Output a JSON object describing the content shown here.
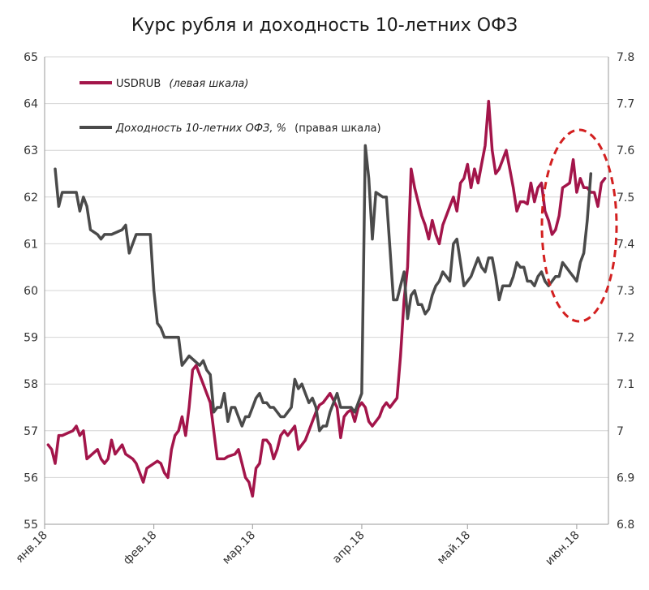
{
  "chart_data": {
    "type": "line",
    "title": "Курс рубля и доходность 10-летних ОФЗ",
    "x_labels": [
      "янв.18",
      "фев.18",
      "мар.18",
      "апр.18",
      "май.18",
      "июн.18"
    ],
    "ylim_left": [
      55,
      65
    ],
    "ylim_right": [
      6.8,
      7.8
    ],
    "y_ticks_left": [
      "55",
      "56",
      "57",
      "58",
      "59",
      "60",
      "61",
      "62",
      "63",
      "64",
      "65"
    ],
    "y_ticks_right": [
      "6.8",
      "6.9",
      "7",
      "7.1",
      "7.2",
      "7.3",
      "7.4",
      "7.5",
      "7.6",
      "7.7",
      "7.8"
    ],
    "grid": true,
    "legend_position": "top-left",
    "series": [
      {
        "name": "USDRUB",
        "name_suffix": "(левая шкала)",
        "axis": "left",
        "color": "#a3154a",
        "points": [
          [
            1,
            56.7
          ],
          [
            2,
            56.6
          ],
          [
            3,
            56.3
          ],
          [
            4,
            56.9
          ],
          [
            5,
            56.9
          ],
          [
            8,
            57.0
          ],
          [
            9,
            57.1
          ],
          [
            10,
            56.9
          ],
          [
            11,
            57.0
          ],
          [
            12,
            56.4
          ],
          [
            15,
            56.6
          ],
          [
            16,
            56.4
          ],
          [
            17,
            56.3
          ],
          [
            18,
            56.4
          ],
          [
            19,
            56.8
          ],
          [
            20,
            56.5
          ],
          [
            22,
            56.7
          ],
          [
            23,
            56.5
          ],
          [
            25,
            56.4
          ],
          [
            26,
            56.3
          ],
          [
            27,
            56.1
          ],
          [
            28,
            55.9
          ],
          [
            29,
            56.2
          ],
          [
            31,
            56.3
          ],
          [
            32,
            56.35
          ],
          [
            33,
            56.3
          ],
          [
            34,
            56.1
          ],
          [
            35,
            56.0
          ],
          [
            36,
            56.6
          ],
          [
            37,
            56.9
          ],
          [
            38,
            57.0
          ],
          [
            39,
            57.3
          ],
          [
            40,
            56.9
          ],
          [
            41,
            57.5
          ],
          [
            42,
            58.3
          ],
          [
            43,
            58.4
          ],
          [
            44,
            58.2
          ],
          [
            45,
            58.0
          ],
          [
            46,
            57.8
          ],
          [
            47,
            57.6
          ],
          [
            48,
            57.0
          ],
          [
            49,
            56.4
          ],
          [
            51,
            56.4
          ],
          [
            52,
            56.45
          ],
          [
            54,
            56.5
          ],
          [
            55,
            56.6
          ],
          [
            56,
            56.3
          ],
          [
            57,
            56.0
          ],
          [
            58,
            55.9
          ],
          [
            59,
            55.6
          ],
          [
            60,
            56.2
          ],
          [
            61,
            56.3
          ],
          [
            62,
            56.8
          ],
          [
            63,
            56.8
          ],
          [
            64,
            56.7
          ],
          [
            65,
            56.4
          ],
          [
            66,
            56.6
          ],
          [
            67,
            56.9
          ],
          [
            68,
            57.0
          ],
          [
            69,
            56.9
          ],
          [
            70,
            57.0
          ],
          [
            71,
            57.1
          ],
          [
            72,
            56.6
          ],
          [
            73,
            56.7
          ],
          [
            74,
            56.8
          ],
          [
            75,
            57.0
          ],
          [
            76,
            57.2
          ],
          [
            77,
            57.4
          ],
          [
            78,
            57.55
          ],
          [
            79,
            57.6
          ],
          [
            80,
            57.7
          ],
          [
            81,
            57.8
          ],
          [
            83,
            57.5
          ],
          [
            84,
            56.85
          ],
          [
            85,
            57.3
          ],
          [
            86,
            57.4
          ],
          [
            87,
            57.45
          ],
          [
            88,
            57.2
          ],
          [
            89,
            57.5
          ],
          [
            90,
            57.6
          ],
          [
            91,
            57.5
          ],
          [
            92,
            57.2
          ],
          [
            93,
            57.1
          ],
          [
            94,
            57.2
          ],
          [
            95,
            57.3
          ],
          [
            96,
            57.5
          ],
          [
            97,
            57.6
          ],
          [
            98,
            57.5
          ],
          [
            99,
            57.6
          ],
          [
            100,
            57.7
          ],
          [
            101,
            58.6
          ],
          [
            102,
            59.8
          ],
          [
            103,
            60.5
          ],
          [
            104,
            62.6
          ],
          [
            105,
            62.2
          ],
          [
            106,
            61.9
          ],
          [
            107,
            61.6
          ],
          [
            108,
            61.4
          ],
          [
            109,
            61.1
          ],
          [
            110,
            61.5
          ],
          [
            111,
            61.2
          ],
          [
            112,
            61.0
          ],
          [
            113,
            61.4
          ],
          [
            114,
            61.6
          ],
          [
            115,
            61.8
          ],
          [
            116,
            62.0
          ],
          [
            117,
            61.7
          ],
          [
            118,
            62.3
          ],
          [
            119,
            62.4
          ],
          [
            120,
            62.7
          ],
          [
            121,
            62.2
          ],
          [
            122,
            62.6
          ],
          [
            123,
            62.3
          ],
          [
            124,
            62.7
          ],
          [
            125,
            63.1
          ],
          [
            126,
            64.05
          ],
          [
            127,
            63.0
          ],
          [
            128,
            62.5
          ],
          [
            129,
            62.6
          ],
          [
            130,
            62.8
          ],
          [
            131,
            63.0
          ],
          [
            132,
            62.6
          ],
          [
            133,
            62.2
          ],
          [
            134,
            61.7
          ],
          [
            135,
            61.9
          ],
          [
            136,
            61.9
          ],
          [
            137,
            61.85
          ],
          [
            138,
            62.3
          ],
          [
            139,
            61.9
          ],
          [
            140,
            62.2
          ],
          [
            141,
            62.3
          ],
          [
            142,
            61.7
          ],
          [
            143,
            61.5
          ],
          [
            144,
            61.2
          ],
          [
            145,
            61.3
          ],
          [
            146,
            61.6
          ],
          [
            147,
            62.2
          ],
          [
            148,
            62.25
          ],
          [
            149,
            62.3
          ],
          [
            150,
            62.8
          ],
          [
            151,
            62.1
          ],
          [
            152,
            62.4
          ],
          [
            153,
            62.2
          ],
          [
            154,
            62.2
          ],
          [
            155,
            62.1
          ],
          [
            156,
            62.1
          ],
          [
            157,
            61.8
          ],
          [
            158,
            62.3
          ],
          [
            159,
            62.4
          ]
        ]
      },
      {
        "name": "Доходность 10-летних ОФЗ, %",
        "name_suffix": "(правая шкала)",
        "axis": "right",
        "color": "#4a4a4a",
        "points": [
          [
            3,
            7.56
          ],
          [
            4,
            7.48
          ],
          [
            5,
            7.51
          ],
          [
            6,
            7.51
          ],
          [
            9,
            7.51
          ],
          [
            10,
            7.47
          ],
          [
            11,
            7.5
          ],
          [
            12,
            7.48
          ],
          [
            13,
            7.43
          ],
          [
            15,
            7.42
          ],
          [
            16,
            7.41
          ],
          [
            17,
            7.42
          ],
          [
            19,
            7.42
          ],
          [
            22,
            7.43
          ],
          [
            23,
            7.44
          ],
          [
            24,
            7.38
          ],
          [
            25,
            7.4
          ],
          [
            26,
            7.42
          ],
          [
            30,
            7.42
          ],
          [
            31,
            7.3
          ],
          [
            32,
            7.23
          ],
          [
            33,
            7.22
          ],
          [
            34,
            7.2
          ],
          [
            38,
            7.2
          ],
          [
            39,
            7.14
          ],
          [
            40,
            7.15
          ],
          [
            41,
            7.16
          ],
          [
            44,
            7.14
          ],
          [
            45,
            7.15
          ],
          [
            46,
            7.13
          ],
          [
            47,
            7.12
          ],
          [
            48,
            7.04
          ],
          [
            49,
            7.05
          ],
          [
            50,
            7.05
          ],
          [
            51,
            7.08
          ],
          [
            52,
            7.02
          ],
          [
            53,
            7.05
          ],
          [
            54,
            7.05
          ],
          [
            55,
            7.03
          ],
          [
            56,
            7.01
          ],
          [
            57,
            7.03
          ],
          [
            58,
            7.03
          ],
          [
            59,
            7.05
          ],
          [
            60,
            7.07
          ],
          [
            61,
            7.08
          ],
          [
            62,
            7.06
          ],
          [
            63,
            7.06
          ],
          [
            64,
            7.05
          ],
          [
            65,
            7.05
          ],
          [
            66,
            7.04
          ],
          [
            67,
            7.03
          ],
          [
            68,
            7.03
          ],
          [
            70,
            7.05
          ],
          [
            71,
            7.11
          ],
          [
            72,
            7.09
          ],
          [
            73,
            7.1
          ],
          [
            74,
            7.08
          ],
          [
            75,
            7.06
          ],
          [
            76,
            7.07
          ],
          [
            77,
            7.05
          ],
          [
            78,
            7.0
          ],
          [
            79,
            7.01
          ],
          [
            80,
            7.01
          ],
          [
            81,
            7.04
          ],
          [
            82,
            7.06
          ],
          [
            83,
            7.08
          ],
          [
            84,
            7.05
          ],
          [
            87,
            7.05
          ],
          [
            88,
            7.04
          ],
          [
            89,
            7.06
          ],
          [
            90,
            7.08
          ],
          [
            91,
            7.61
          ],
          [
            92,
            7.54
          ],
          [
            93,
            7.41
          ],
          [
            94,
            7.51
          ],
          [
            96,
            7.5
          ],
          [
            97,
            7.5
          ],
          [
            98,
            7.39
          ],
          [
            99,
            7.28
          ],
          [
            100,
            7.28
          ],
          [
            101,
            7.31
          ],
          [
            102,
            7.34
          ],
          [
            103,
            7.24
          ],
          [
            104,
            7.29
          ],
          [
            105,
            7.3
          ],
          [
            106,
            7.27
          ],
          [
            107,
            7.27
          ],
          [
            108,
            7.25
          ],
          [
            109,
            7.26
          ],
          [
            110,
            7.29
          ],
          [
            111,
            7.31
          ],
          [
            112,
            7.32
          ],
          [
            113,
            7.34
          ],
          [
            114,
            7.33
          ],
          [
            115,
            7.32
          ],
          [
            116,
            7.4
          ],
          [
            117,
            7.41
          ],
          [
            118,
            7.36
          ],
          [
            119,
            7.31
          ],
          [
            120,
            7.32
          ],
          [
            121,
            7.33
          ],
          [
            122,
            7.35
          ],
          [
            123,
            7.37
          ],
          [
            124,
            7.35
          ],
          [
            125,
            7.34
          ],
          [
            126,
            7.37
          ],
          [
            127,
            7.37
          ],
          [
            128,
            7.33
          ],
          [
            129,
            7.28
          ],
          [
            130,
            7.31
          ],
          [
            131,
            7.31
          ],
          [
            132,
            7.31
          ],
          [
            133,
            7.33
          ],
          [
            134,
            7.36
          ],
          [
            135,
            7.35
          ],
          [
            136,
            7.35
          ],
          [
            137,
            7.32
          ],
          [
            138,
            7.32
          ],
          [
            139,
            7.31
          ],
          [
            140,
            7.33
          ],
          [
            141,
            7.34
          ],
          [
            142,
            7.32
          ],
          [
            143,
            7.31
          ],
          [
            144,
            7.32
          ],
          [
            145,
            7.33
          ],
          [
            146,
            7.33
          ],
          [
            147,
            7.36
          ],
          [
            148,
            7.35
          ],
          [
            149,
            7.34
          ],
          [
            150,
            7.33
          ],
          [
            151,
            7.32
          ],
          [
            152,
            7.36
          ],
          [
            153,
            7.38
          ],
          [
            154,
            7.45
          ],
          [
            155,
            7.55
          ]
        ]
      }
    ]
  }
}
